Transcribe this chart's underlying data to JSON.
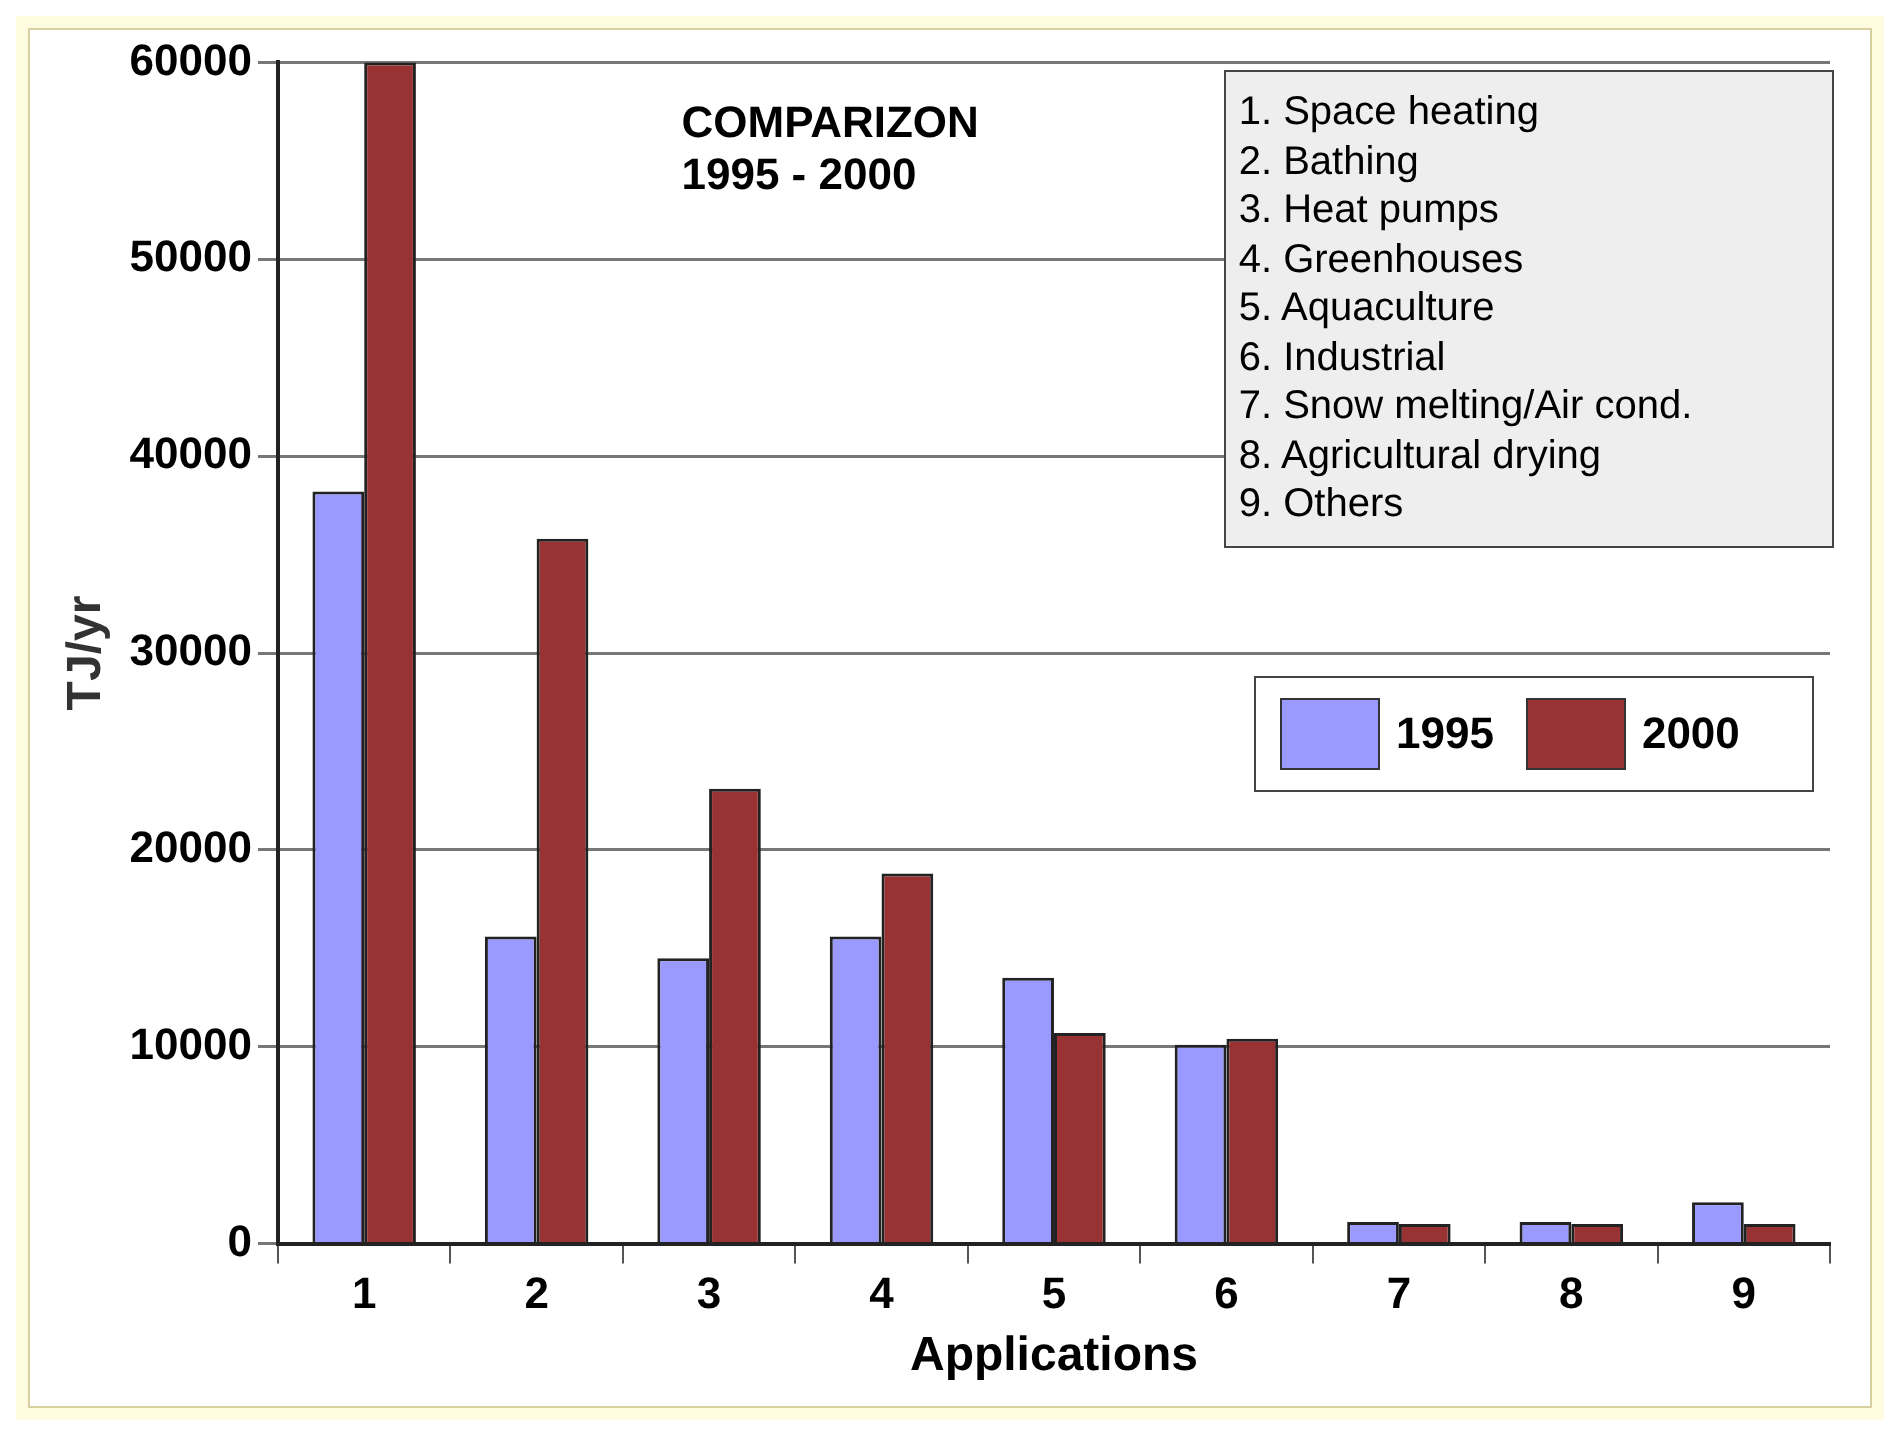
{
  "chart_data": {
    "type": "bar",
    "title": "COMPARIZON",
    "subtitle": "1995 - 2000",
    "xlabel": "Applications",
    "ylabel": "TJ/yr",
    "categories": [
      "1",
      "2",
      "3",
      "4",
      "5",
      "6",
      "7",
      "8",
      "9"
    ],
    "series": [
      {
        "name": "1995",
        "color": "#9999ff",
        "values": [
          38200,
          15600,
          14500,
          15600,
          13500,
          10100,
          1100,
          1100,
          2100
        ]
      },
      {
        "name": "2000",
        "color": "#993333",
        "values": [
          60000,
          35800,
          23100,
          18800,
          10700,
          10400,
          1000,
          1000,
          1000
        ]
      }
    ],
    "ylim": [
      0,
      60000
    ],
    "yticks": [
      0,
      10000,
      20000,
      30000,
      40000,
      50000,
      60000
    ],
    "grid": "y",
    "legend": "right",
    "annotations": [
      "1. Space heating",
      "2. Bathing",
      "3. Heat pumps",
      "4. Greenhouses",
      "5. Aquaculture",
      "6. Industrial",
      "7. Snow melting/Air cond.",
      "8. Agricultural drying",
      "9. Others"
    ]
  }
}
